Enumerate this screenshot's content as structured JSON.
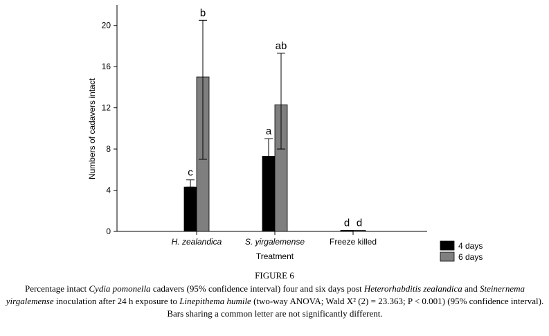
{
  "figure_label": "FIGURE 6",
  "caption": {
    "t1": "Percentage intact ",
    "i1": "Cydia pomonella",
    "t2": " cadavers (95% confidence interval) four and six days post ",
    "i2": "Heterorhabditis zealandica",
    "t3": " and ",
    "i3": "Steinernema yirgalemense",
    "t4": " inoculation after 24 h exposure to ",
    "i4": "Linepithema humile",
    "t5": " (two-way ANOVA; Wald X² (2) = 23.363; P < 0.001) (95% confidence interval). Bars sharing a common letter are not significantly different."
  },
  "colors": {
    "series_4days": "#000000",
    "series_6days": "#7f7f7f",
    "axis": "#000000"
  },
  "chart_data": {
    "type": "bar",
    "title": "",
    "xlabel": "Treatment",
    "ylabel": "Numbers of cadavers intact",
    "ylim": [
      0,
      22
    ],
    "yticks": [
      0,
      4,
      8,
      12,
      16,
      20
    ],
    "categories": [
      "H. zealandica",
      "S. yirgalemense",
      "Freeze killed"
    ],
    "category_italic": [
      true,
      true,
      false
    ],
    "legend_position": "bottom-right",
    "series": [
      {
        "name": "4 days",
        "color": "#000000",
        "values": [
          4.3,
          7.3,
          0.1
        ],
        "ci_low": [
          4.3,
          7.3,
          0.1
        ],
        "ci_high": [
          5.0,
          9.0,
          0.1
        ],
        "letters": [
          "c",
          "a",
          "d"
        ]
      },
      {
        "name": "6 days",
        "color": "#7f7f7f",
        "values": [
          15.0,
          12.3,
          0.1
        ],
        "ci_low": [
          7.0,
          8.0,
          0.1
        ],
        "ci_high": [
          20.5,
          17.3,
          0.1
        ],
        "letters": [
          "b",
          "ab",
          "d"
        ]
      }
    ]
  }
}
